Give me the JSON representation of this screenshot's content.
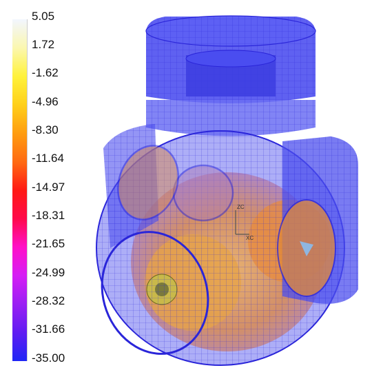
{
  "legend": {
    "ticks": [
      "5.05",
      "1.72",
      "-1.62",
      "-4.96",
      "-8.30",
      "-11.64",
      "-14.97",
      "-18.31",
      "-21.65",
      "-24.99",
      "-28.32",
      "-31.66",
      "-35.00"
    ],
    "colors": [
      "#f2f6ff",
      "#fbf7b0",
      "#fff23b",
      "#ffd01a",
      "#ff9d10",
      "#ff6a12",
      "#ff1a14",
      "#ff0a4a",
      "#ff10c8",
      "#d51ef5",
      "#9a1ff3",
      "#5f1cf2",
      "#1f26f5"
    ]
  },
  "axis_labels": {
    "z": "ZC",
    "x": "XC"
  },
  "colors": {
    "mesh": "#2a25d9",
    "shell_fill": "#5a5cf2",
    "interior": "#e58b3a"
  }
}
